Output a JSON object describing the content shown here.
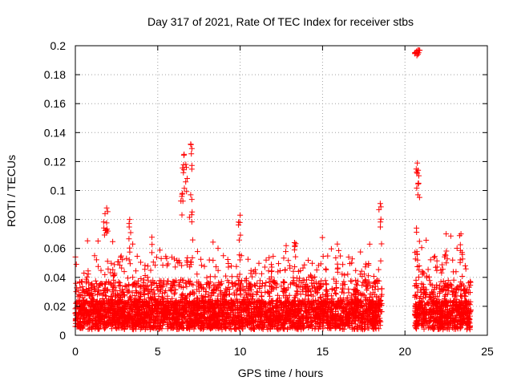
{
  "chart_data": {
    "type": "scatter",
    "title": "Day 317 of 2021, Rate Of TEC Index for receiver stbs",
    "xlabel": "GPS time / hours",
    "ylabel": "ROTI / TECUs",
    "xlim": [
      0,
      25
    ],
    "ylim": [
      0,
      0.2
    ],
    "xticks": [
      0,
      5,
      10,
      15,
      20,
      25
    ],
    "xtick_labels": [
      "0",
      "5",
      "10",
      "15",
      "20",
      "25"
    ],
    "yticks": [
      0,
      0.02,
      0.04,
      0.06,
      0.08,
      0.1,
      0.12,
      0.14,
      0.16,
      0.18,
      0.2
    ],
    "ytick_labels": [
      "0",
      "0.02",
      "0.04",
      "0.06",
      "0.08",
      "0.1",
      "0.12",
      "0.14",
      "0.16",
      "0.18",
      "0.2"
    ],
    "grid": true,
    "marker": "+",
    "color": "#ff0000",
    "data_segments": [
      {
        "x_start": 0.0,
        "x_end": 18.6
      },
      {
        "x_start": 20.6,
        "x_end": 24.0
      }
    ],
    "notable_points": [
      {
        "x": 7.0,
        "y": 0.132
      },
      {
        "x": 6.6,
        "y": 0.125
      },
      {
        "x": 6.7,
        "y": 0.118
      },
      {
        "x": 20.8,
        "y": 0.197
      },
      {
        "x": 20.7,
        "y": 0.196
      },
      {
        "x": 20.75,
        "y": 0.119
      },
      {
        "x": 20.8,
        "y": 0.114
      },
      {
        "x": 18.5,
        "y": 0.091
      },
      {
        "x": 1.9,
        "y": 0.088
      },
      {
        "x": 1.8,
        "y": 0.084
      },
      {
        "x": 10.0,
        "y": 0.083
      },
      {
        "x": 3.3,
        "y": 0.08
      },
      {
        "x": 6.5,
        "y": 0.098
      },
      {
        "x": 7.0,
        "y": 0.097
      },
      {
        "x": 20.7,
        "y": 0.074
      },
      {
        "x": 22.5,
        "y": 0.07
      },
      {
        "x": 23.4,
        "y": 0.07
      },
      {
        "x": 15.9,
        "y": 0.063
      },
      {
        "x": 13.3,
        "y": 0.064
      }
    ]
  }
}
